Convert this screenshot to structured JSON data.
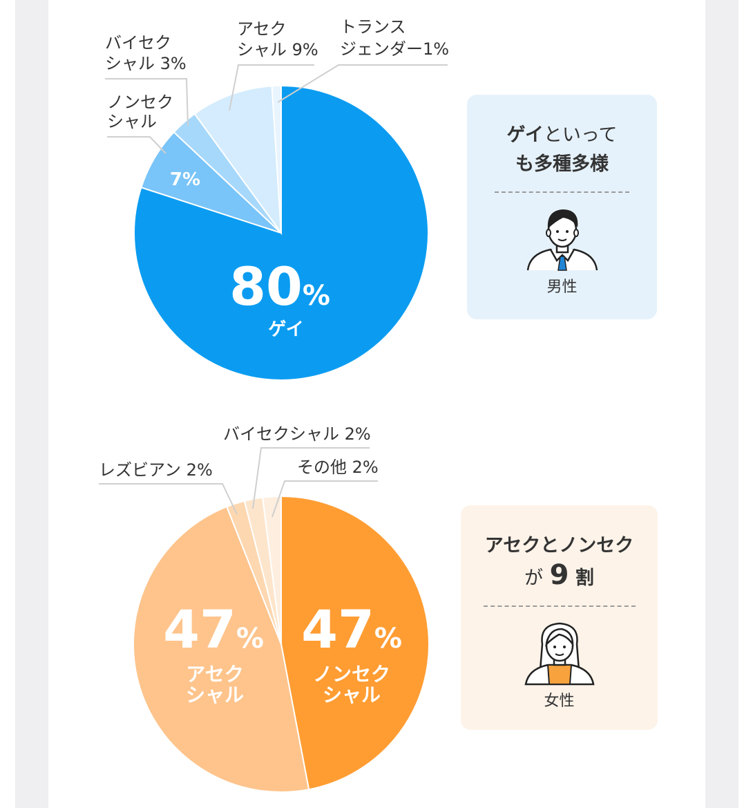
{
  "colors": {
    "male": [
      "#0b9cf1",
      "#79c4f8",
      "#a6d8fb",
      "#d4ecfd",
      "#e8f4fe"
    ],
    "female": [
      "#ff9d33",
      "#fec48c",
      "#fdd7b0",
      "#fde5cc",
      "#fdeedf"
    ],
    "male_card": "#e6f2fb",
    "female_card": "#fdf3e9"
  },
  "chart_data": [
    {
      "type": "pie",
      "title": "",
      "slices": [
        {
          "label": "ゲイ",
          "value": 80,
          "pct_text": "80",
          "pct_unit": "%",
          "name_text": "ゲイ"
        },
        {
          "label": "ノンセクシャル",
          "value": 7,
          "pct_text": "7%",
          "callout": [
            "ノンセク",
            "シャル"
          ]
        },
        {
          "label": "バイセクシャル",
          "value": 3,
          "callout": [
            "バイセク",
            "シャル 3%"
          ]
        },
        {
          "label": "アセクシャル",
          "value": 9,
          "callout": [
            "アセク",
            "シャル 9%"
          ]
        },
        {
          "label": "トランスジェンダー",
          "value": 1,
          "callout": [
            "トランス",
            "ジェンダー1%"
          ]
        }
      ]
    },
    {
      "type": "pie",
      "title": "",
      "slices": [
        {
          "label": "ノンセクシャル",
          "value": 47,
          "pct_text": "47",
          "pct_unit": "%",
          "name_text": [
            "ノンセク",
            "シャル"
          ]
        },
        {
          "label": "アセクシャル",
          "value": 47,
          "pct_text": "47",
          "pct_unit": "%",
          "name_text": [
            "アセク",
            "シャル"
          ]
        },
        {
          "label": "レズビアン",
          "value": 2,
          "callout": [
            "レズビアン 2%"
          ]
        },
        {
          "label": "バイセクシャル",
          "value": 2,
          "callout": [
            "バイセクシャル 2%"
          ]
        },
        {
          "label": "その他",
          "value": 2,
          "callout": [
            "その他 2%"
          ]
        }
      ]
    }
  ],
  "cards": {
    "male": {
      "title_bold": "ゲイ",
      "title_rest_1": "といって",
      "title_line2": "も多種多様",
      "label": "男性",
      "icon": "man-icon"
    },
    "female": {
      "title_line1": "アセクとノンセク",
      "title_ga": "が",
      "title_num": "9",
      "title_wari": "割",
      "label": "女性",
      "icon": "woman-icon"
    }
  }
}
